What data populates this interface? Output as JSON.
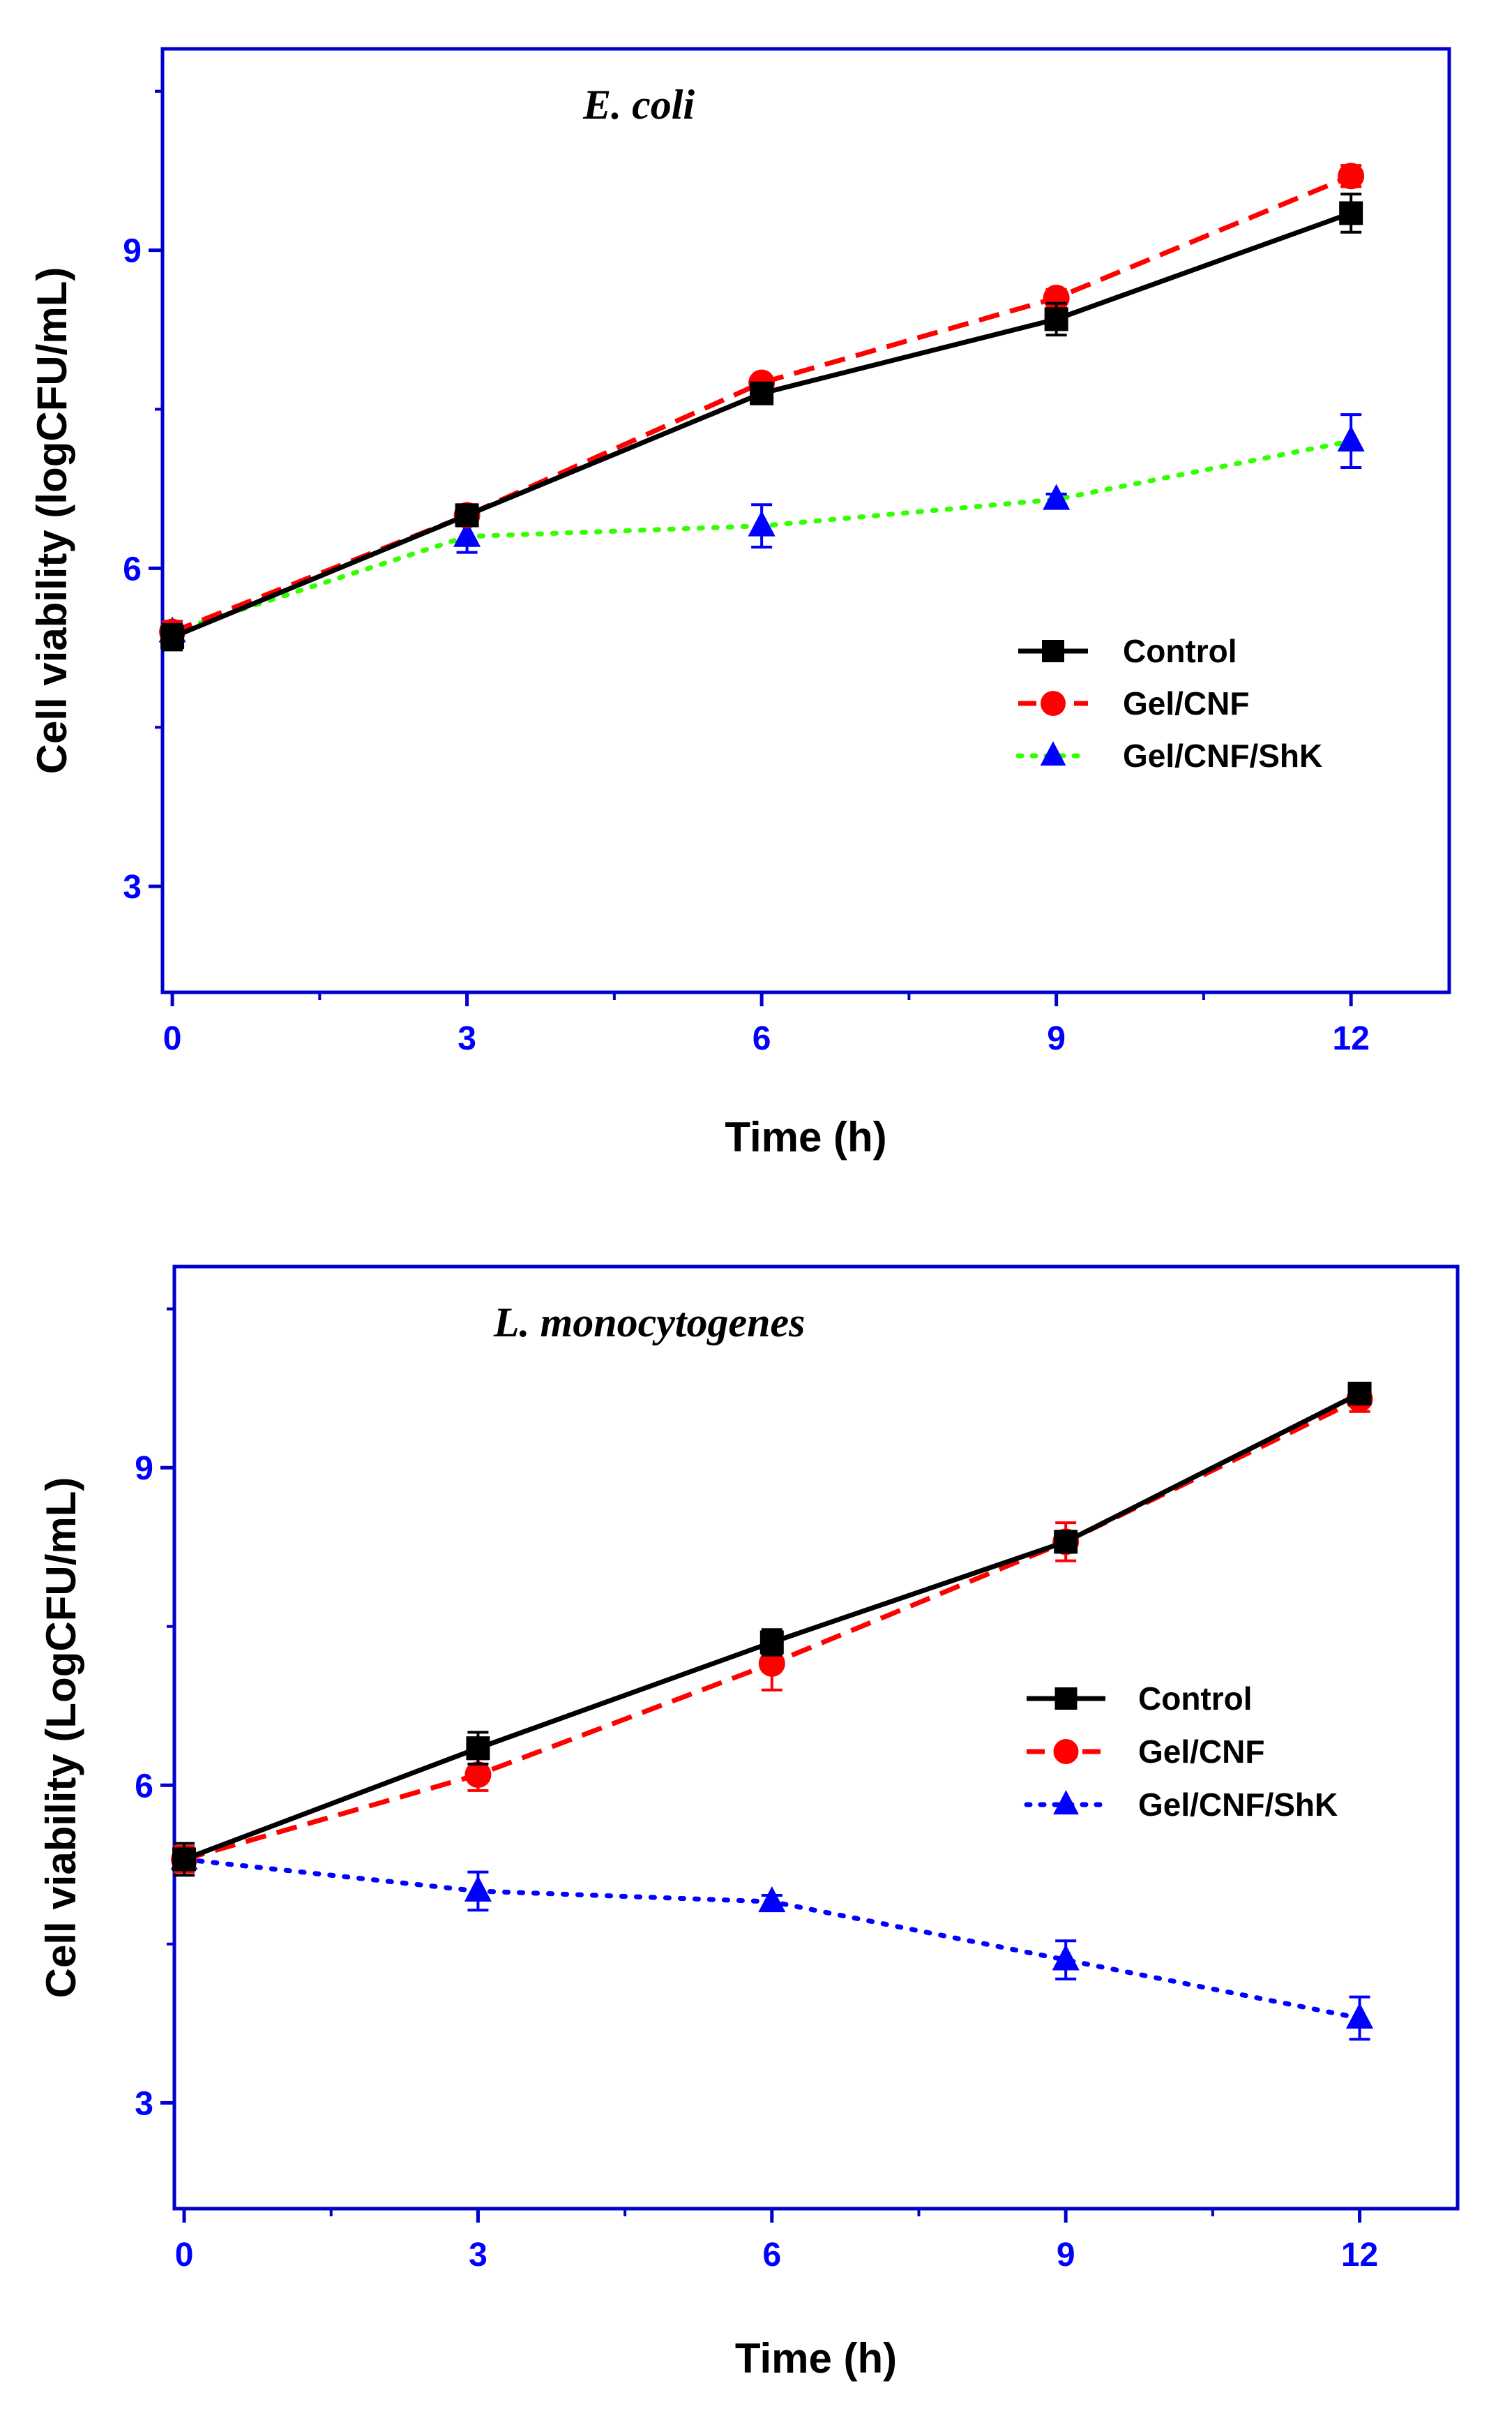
{
  "chart_data": [
    {
      "type": "line",
      "title": "E. coli",
      "xlabel": "Time (h)",
      "ylabel": "Cell viability (logCFU/mL)",
      "xlim": [
        -0.1,
        13.0
      ],
      "ylim": [
        2.0,
        10.9
      ],
      "x_ticks": [
        "0",
        "3",
        "6",
        "9",
        "12"
      ],
      "y_ticks": [
        "3",
        "6",
        "9"
      ],
      "legend_position": "center-right",
      "grid": false,
      "x": [
        0,
        3,
        6,
        9,
        12
      ],
      "series": [
        {
          "name": "Control",
          "values": [
            5.35,
            6.5,
            7.65,
            8.35,
            9.35
          ],
          "errors": [
            0.12,
            0.08,
            0.06,
            0.15,
            0.18
          ],
          "color": "#000000",
          "marker": "square",
          "dash": "solid"
        },
        {
          "name": "Gel/CNF",
          "values": [
            5.4,
            6.5,
            7.75,
            8.55,
            9.7
          ],
          "errors": [
            0.1,
            0.1,
            0.06,
            0.08,
            0.1
          ],
          "color": "#ff0000",
          "marker": "circle",
          "dash": "dashed"
        },
        {
          "name": "Gel/CNF/ShK",
          "values": [
            5.4,
            6.3,
            6.4,
            6.65,
            7.2
          ],
          "errors": [
            0.1,
            0.15,
            0.2,
            0.05,
            0.25
          ],
          "color": "#33ff00",
          "marker_color": "#0000ff",
          "marker": "triangle",
          "dash": "dotted"
        }
      ]
    },
    {
      "type": "line",
      "title": "L. monocytogenes",
      "xlabel": "Time (h)",
      "ylabel": "Cell viability (LogCFU/mL)",
      "xlim": [
        -0.1,
        13.0
      ],
      "ylim": [
        2.0,
        10.9
      ],
      "x_ticks": [
        "0",
        "3",
        "6",
        "9",
        "12"
      ],
      "y_ticks": [
        "3",
        "6",
        "9"
      ],
      "legend_position": "center-right",
      "grid": false,
      "x": [
        0,
        3,
        6,
        9,
        12
      ],
      "series": [
        {
          "name": "Control",
          "values": [
            5.3,
            6.35,
            7.35,
            8.3,
            9.7
          ],
          "errors": [
            0.15,
            0.15,
            0.12,
            0.1,
            0.08
          ],
          "color": "#000000",
          "marker": "square",
          "dash": "solid"
        },
        {
          "name": "Gel/CNF",
          "values": [
            5.3,
            6.1,
            7.15,
            8.3,
            9.65
          ],
          "errors": [
            0.12,
            0.15,
            0.25,
            0.18,
            0.12
          ],
          "color": "#ff0000",
          "marker": "circle",
          "dash": "dashed"
        },
        {
          "name": "Gel/CNF/ShK",
          "values": [
            5.3,
            5.0,
            4.9,
            4.35,
            3.8
          ],
          "errors": [
            0.12,
            0.18,
            0.06,
            0.18,
            0.2
          ],
          "color": "#0000ff",
          "marker_color": "#0000ff",
          "marker": "triangle",
          "dash": "dotted"
        }
      ]
    }
  ],
  "style": {
    "frame_color": "#0000cc",
    "tick_label_color": "#0000ff"
  }
}
